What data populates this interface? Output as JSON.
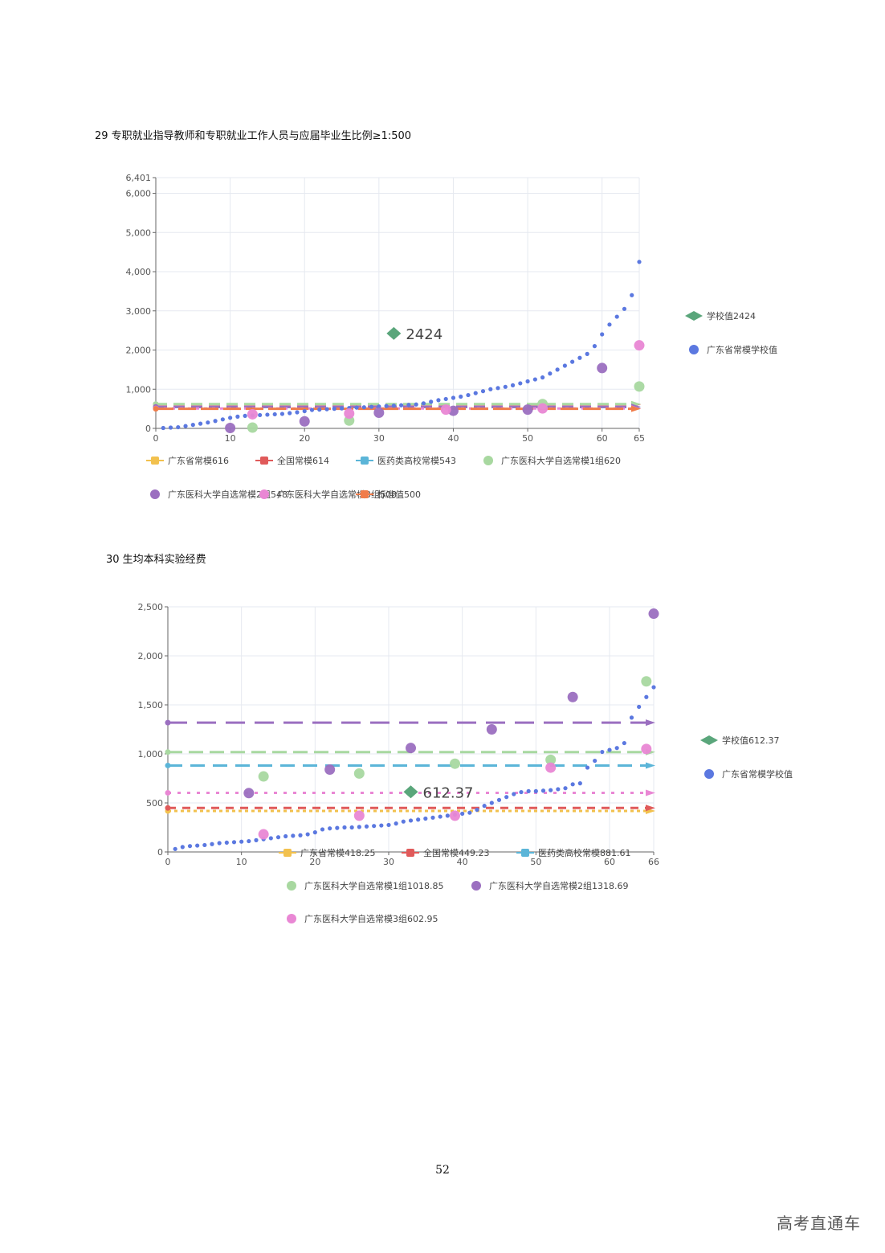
{
  "chart_data": [
    {
      "type": "scatter",
      "title": "29 专职就业指导教师和专职就业工作人员与应届毕业生比例≥1:500",
      "xlim": [
        0,
        65
      ],
      "ylim": [
        0,
        6401
      ],
      "x_ticks": [
        "0",
        "10",
        "20",
        "30",
        "40",
        "50",
        "60",
        "65"
      ],
      "y_ticks": [
        "0",
        "1,000",
        "2,000",
        "3,000",
        "4,000",
        "5,000",
        "6,000",
        "6,401"
      ],
      "y_tick_values": [
        0,
        1000,
        2000,
        3000,
        4000,
        5000,
        6000,
        6401
      ],
      "x_tick_values": [
        0,
        10,
        20,
        30,
        40,
        50,
        60,
        65
      ],
      "grid": true,
      "school_value": {
        "label": "学校值2424",
        "display": "2424",
        "x": 32,
        "y": 2424,
        "color": "#5aa67b"
      },
      "provincial_schools": {
        "label": "广东省常模学校值",
        "color": "#5b78e0",
        "x": [
          1,
          2,
          3,
          4,
          5,
          6,
          7,
          8,
          9,
          10,
          11,
          12,
          13,
          14,
          15,
          16,
          17,
          18,
          19,
          20,
          21,
          22,
          23,
          24,
          25,
          26,
          27,
          28,
          29,
          30,
          31,
          32,
          33,
          34,
          35,
          36,
          37,
          38,
          39,
          40,
          41,
          42,
          43,
          44,
          45,
          46,
          47,
          48,
          49,
          50,
          51,
          52,
          53,
          54,
          55,
          56,
          57,
          58,
          59,
          60,
          61,
          62,
          63,
          64,
          65
        ],
        "y": [
          10,
          20,
          30,
          60,
          90,
          120,
          150,
          190,
          230,
          270,
          300,
          320,
          330,
          340,
          350,
          360,
          370,
          390,
          410,
          440,
          470,
          480,
          490,
          500,
          510,
          520,
          530,
          540,
          550,
          560,
          570,
          580,
          590,
          600,
          610,
          640,
          680,
          720,
          750,
          780,
          810,
          850,
          900,
          950,
          1000,
          1030,
          1060,
          1100,
          1150,
          1200,
          1250,
          1300,
          1400,
          1500,
          1600,
          1700,
          1800,
          1900,
          2100,
          2400,
          2650,
          2850,
          3050,
          3400,
          4250
        ]
      },
      "reference_lines": [
        {
          "label": "广东省常模616",
          "value": 616,
          "color": "#f2c14e",
          "dash": "14,8"
        },
        {
          "label": "全国常模614",
          "value": 614,
          "color": "#e05a5a",
          "dash": "14,8"
        },
        {
          "label": "医药类高校常模543",
          "value": 543,
          "color": "#5bb5d8",
          "dash": "14,8"
        },
        {
          "label": "广东医科大学自选常模1组620",
          "value": 620,
          "color": "#a8d8a0",
          "dash": "14,8"
        },
        {
          "label": "广东医科大学自选常模2组548",
          "value": 548,
          "color": "#9b6fc0",
          "dash": "14,8"
        },
        {
          "label": "广东医科大学自选常模3组508",
          "value": 508,
          "color": "#e987d4",
          "dash": "4,6"
        },
        {
          "label": "标准值500",
          "value": 500,
          "color": "#f07c4a",
          "dash": "22,6"
        }
      ],
      "group_points": [
        {
          "series": 3,
          "x": [
            13,
            26,
            52,
            65
          ],
          "y": [
            20,
            200,
            620,
            1070
          ]
        },
        {
          "series": 4,
          "x": [
            10,
            20,
            30,
            40,
            50,
            60
          ],
          "y": [
            10,
            180,
            400,
            450,
            480,
            1540
          ]
        },
        {
          "series": 5,
          "x": [
            13,
            26,
            39,
            52,
            65
          ],
          "y": [
            360,
            380,
            480,
            510,
            2120
          ]
        }
      ],
      "legend_marker": [
        "dash",
        "dash",
        "dash",
        "circle",
        "circle",
        "circle",
        "dash"
      ]
    },
    {
      "type": "scatter",
      "title": "30 生均本科实验经费",
      "xlim": [
        0,
        66
      ],
      "ylim": [
        0,
        2500
      ],
      "x_ticks": [
        "0",
        "10",
        "20",
        "30",
        "40",
        "50",
        "60",
        "66"
      ],
      "x_tick_values": [
        0,
        10,
        20,
        30,
        40,
        50,
        60,
        66
      ],
      "y_ticks": [
        "0",
        "500",
        "1,000",
        "1,500",
        "2,000",
        "2,500"
      ],
      "y_tick_values": [
        0,
        500,
        1000,
        1500,
        2000,
        2500
      ],
      "grid": true,
      "school_value": {
        "label": "学校值612.37",
        "display": "612.37",
        "x": 33,
        "y": 612.37,
        "color": "#5aa67b"
      },
      "provincial_schools": {
        "label": "广东省常模学校值",
        "color": "#5b78e0",
        "x": [
          1,
          2,
          3,
          4,
          5,
          6,
          7,
          8,
          9,
          10,
          11,
          12,
          13,
          14,
          15,
          16,
          17,
          18,
          19,
          20,
          21,
          22,
          23,
          24,
          25,
          26,
          27,
          28,
          29,
          30,
          31,
          32,
          33,
          34,
          35,
          36,
          37,
          38,
          39,
          40,
          41,
          42,
          43,
          44,
          45,
          46,
          47,
          48,
          49,
          50,
          51,
          52,
          53,
          54,
          55,
          56,
          57,
          58,
          59,
          60,
          61,
          62,
          63,
          64,
          65,
          66
        ],
        "y": [
          30,
          50,
          60,
          65,
          70,
          80,
          90,
          95,
          100,
          105,
          110,
          120,
          130,
          140,
          150,
          160,
          165,
          170,
          180,
          200,
          230,
          240,
          245,
          250,
          250,
          255,
          260,
          265,
          270,
          275,
          290,
          310,
          320,
          330,
          340,
          350,
          360,
          370,
          380,
          390,
          400,
          430,
          470,
          500,
          530,
          560,
          590,
          610,
          620,
          620,
          625,
          630,
          640,
          650,
          690,
          700,
          860,
          930,
          1020,
          1040,
          1060,
          1110,
          1370,
          1480,
          1580,
          1680
        ]
      },
      "reference_lines": [
        {
          "label": "广东省常模418.25",
          "value": 418.25,
          "color": "#f2c14e",
          "dash": "4,4"
        },
        {
          "label": "全国常模449.23",
          "value": 449.23,
          "color": "#e05a5a",
          "dash": "10,8"
        },
        {
          "label": "医药类高校常模881.61",
          "value": 881.61,
          "color": "#5bb5d8",
          "dash": "18,10"
        },
        {
          "label": "广东医科大学自选常模1组1018.85",
          "value": 1018.85,
          "color": "#a8d8a0",
          "dash": "18,8"
        },
        {
          "label": "广东医科大学自选常模2组1318.69",
          "value": 1318.69,
          "color": "#9b6fc0",
          "dash": "24,12"
        },
        {
          "label": "广东医科大学自选常模3组602.95",
          "value": 602.95,
          "color": "#e987d4",
          "dash": "4,8"
        }
      ],
      "group_points": [
        {
          "series": 3,
          "x": [
            13,
            26,
            39,
            52,
            65
          ],
          "y": [
            770,
            800,
            900,
            940,
            1740
          ]
        },
        {
          "series": 4,
          "x": [
            11,
            22,
            33,
            44,
            55,
            66
          ],
          "y": [
            600,
            840,
            1060,
            1250,
            1580,
            2430
          ]
        },
        {
          "series": 5,
          "x": [
            13,
            26,
            39,
            52,
            65
          ],
          "y": [
            180,
            370,
            370,
            860,
            1050
          ]
        }
      ],
      "legend_marker": [
        "dash",
        "dash",
        "dash",
        "circle",
        "circle",
        "circle"
      ]
    }
  ],
  "page": {
    "number": "52",
    "watermark": "高考直通车"
  }
}
